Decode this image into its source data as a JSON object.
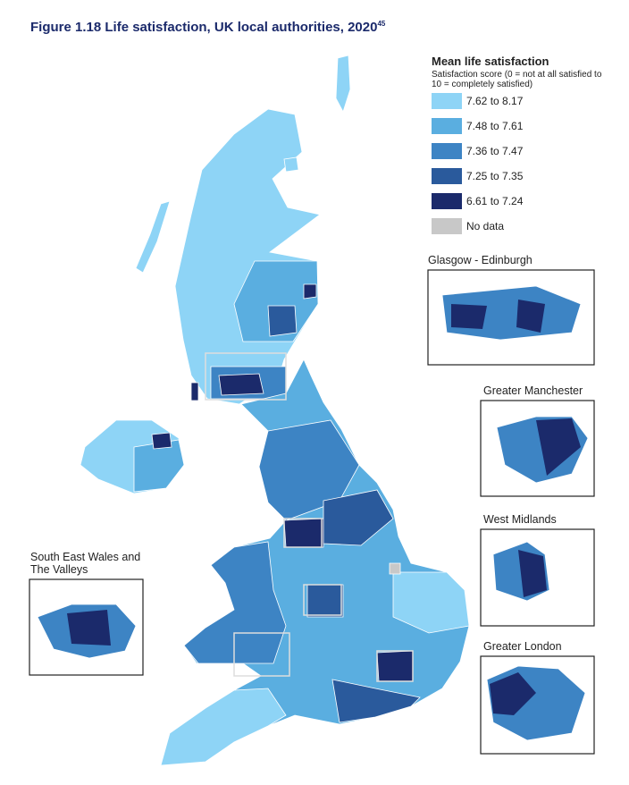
{
  "title": {
    "text": "Figure 1.18  Life satisfaction, UK local authorities, 2020",
    "footnote": "45"
  },
  "legend": {
    "title": "Mean life satisfaction",
    "subtitle": "Satisfaction score (0 = not at all satisfied to 10 = completely satisfied)",
    "items": [
      {
        "label": "7.62 to 8.17",
        "color": "#8ed4f6"
      },
      {
        "label": "7.48 to 7.61",
        "color": "#5aaee0"
      },
      {
        "label": "7.36 to 7.47",
        "color": "#3d84c4"
      },
      {
        "label": "7.25 to 7.35",
        "color": "#2a5a9c"
      },
      {
        "label": "6.61 to 7.24",
        "color": "#1b2a6b"
      },
      {
        "label": "No data",
        "color": "#c8c8c8"
      }
    ]
  },
  "insets": [
    {
      "label": "Glasgow - Edinburgh"
    },
    {
      "label": "Greater Manchester"
    },
    {
      "label": "West Midlands"
    },
    {
      "label": "Greater London"
    },
    {
      "label": "South East Wales and The Valleys"
    }
  ]
}
